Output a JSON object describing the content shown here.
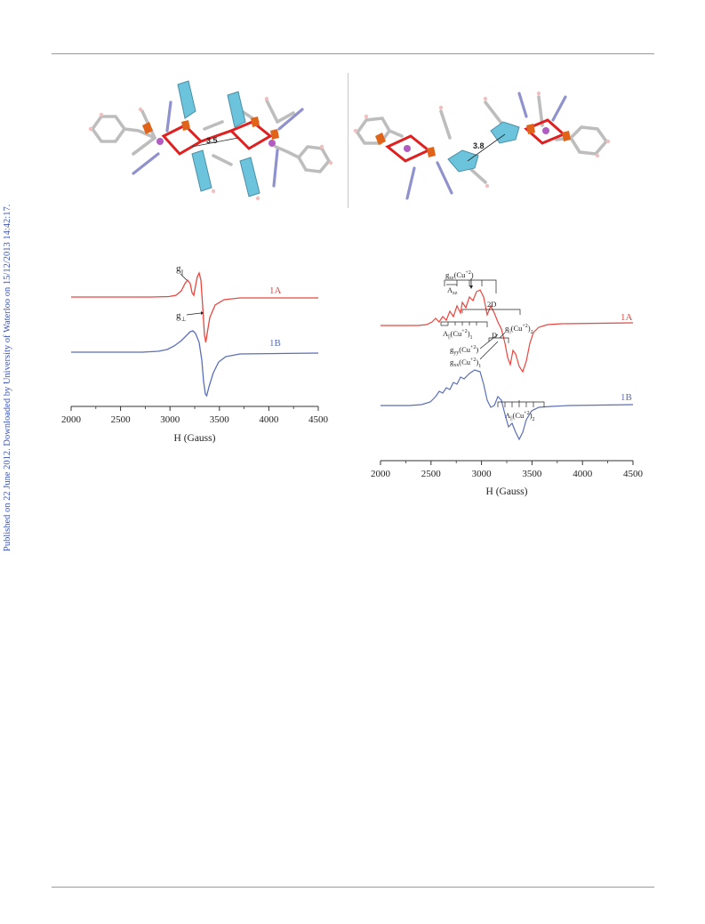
{
  "sidebar_text": "Published on 22 June 2012. Downloaded by University of Waterloo on 15/12/2013 14:42:17.",
  "structure_left": {
    "distance_label": "3.5"
  },
  "structure_right": {
    "distance_label": "3.8"
  },
  "colors": {
    "series_1A": "#e8473f",
    "series_1B": "#5b6fb8",
    "pi_ring": "#6cc4dc",
    "cu": "#e0631a",
    "bond": "#e02020"
  },
  "chart_data": [
    {
      "type": "line",
      "xlabel": "H (Gauss)",
      "ylabel": "",
      "xlim": [
        2000,
        4500
      ],
      "x_ticks": [
        "2000",
        "2500",
        "3000",
        "3500",
        "4000",
        "4500"
      ],
      "series": [
        {
          "name": "1A",
          "color": "#e8473f"
        },
        {
          "name": "1B",
          "color": "#5b6fb8"
        }
      ],
      "annotations": {
        "g_par": "g",
        "g_par_sub": "||",
        "g_perp": "g",
        "g_perp_sub": "⊥"
      }
    },
    {
      "type": "line",
      "xlabel": "H (Gauss)",
      "ylabel": "",
      "xlim": [
        2000,
        4500
      ],
      "x_ticks": [
        "2000",
        "2500",
        "3000",
        "3500",
        "4000",
        "4500"
      ],
      "series": [
        {
          "name": "1A",
          "color": "#e8473f"
        },
        {
          "name": "1B",
          "color": "#5b6fb8"
        }
      ],
      "annotations": {
        "gzz": "g",
        "gzz_sub": "zz",
        "gzz_ion": "(Cu",
        "gzz_charge": "+2",
        "gzz_close": ")",
        "azz": "A",
        "azz_sub": "zz",
        "two_d": "2D",
        "d": "D",
        "a_par_1": "A",
        "a_par_1_sub": "||",
        "a_par_1_ion": "(Cu",
        "a_par_1_charge": "+2",
        "a_par_1_close": ")",
        "a_par_1_index": "1",
        "g_par_2": "g",
        "g_par_2_sub": "||",
        "g_par_2_ion": "(Cu",
        "g_par_2_charge": "+2",
        "g_par_2_close": ")",
        "g_par_2_index": "2",
        "gyy": "g",
        "gyy_sub": "yy",
        "gyy_ion": "(Cu",
        "gyy_charge": "+2",
        "gyy_close": ")",
        "gxx": "g",
        "gxx_sub": "xx",
        "gxx_ion": "(Cu",
        "gxx_charge": "+2",
        "gxx_close": ")",
        "gxx_index": "1",
        "a_par_2": "A",
        "a_par_2_sub": "||",
        "a_par_2_ion": "(Cu",
        "a_par_2_charge": "+2",
        "a_par_2_close": ")",
        "a_par_2_index": "2"
      }
    }
  ]
}
